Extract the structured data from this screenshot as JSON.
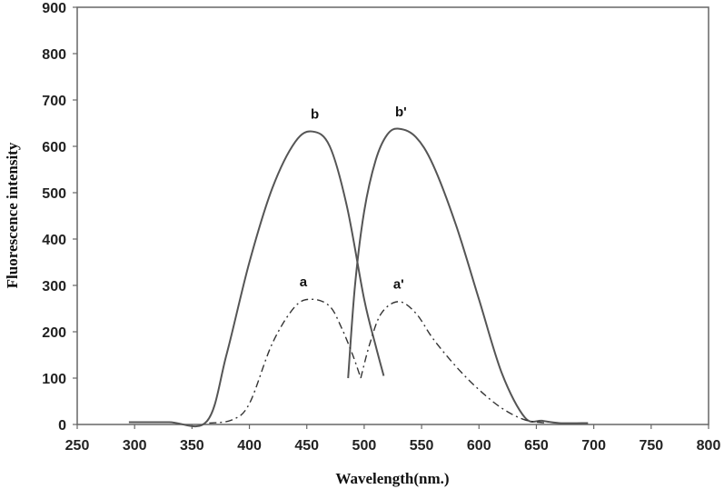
{
  "chart_data": {
    "type": "line",
    "title": "",
    "xlabel": "Wavelength(nm.)",
    "ylabel": "Fluorescence intensity",
    "xlim": [
      250,
      800
    ],
    "ylim": [
      0,
      900
    ],
    "xticks": [
      250,
      300,
      350,
      400,
      450,
      500,
      550,
      600,
      650,
      700,
      750,
      800
    ],
    "yticks": [
      0,
      100,
      200,
      300,
      400,
      500,
      600,
      700,
      800,
      900
    ],
    "grid": false,
    "legend": "none",
    "series": [
      {
        "name": "b",
        "style": "solid",
        "color": "#555555",
        "x": [
          295,
          330,
          363,
          380,
          400,
          420,
          440,
          455,
          470,
          485,
          500,
          510,
          517
        ],
        "y": [
          5,
          5,
          7,
          150,
          350,
          510,
          610,
          632,
          600,
          470,
          270,
          170,
          105
        ]
      },
      {
        "name": "b'",
        "style": "solid",
        "color": "#555555",
        "x": [
          486,
          492,
          500,
          510,
          520,
          530,
          545,
          560,
          580,
          600,
          620,
          640,
          655,
          670,
          695
        ],
        "y": [
          100,
          300,
          460,
          570,
          625,
          638,
          620,
          560,
          430,
          270,
          110,
          15,
          8,
          3,
          3
        ]
      },
      {
        "name": "a",
        "style": "dashed",
        "color": "#333333",
        "x": [
          365,
          385,
          400,
          420,
          440,
          455,
          470,
          480,
          490,
          497
        ],
        "y": [
          3,
          10,
          45,
          175,
          255,
          270,
          255,
          210,
          150,
          100
        ]
      },
      {
        "name": "a'",
        "style": "dashed",
        "color": "#333333",
        "x": [
          497,
          505,
          515,
          530,
          545,
          560,
          580,
          600,
          620,
          640,
          660
        ],
        "y": [
          100,
          175,
          240,
          265,
          240,
          185,
          125,
          75,
          35,
          10,
          3
        ]
      }
    ],
    "annotations": [
      {
        "text": "b",
        "x": 457,
        "y": 660
      },
      {
        "text": "b'",
        "x": 532,
        "y": 665
      },
      {
        "text": "a",
        "x": 447,
        "y": 298
      },
      {
        "text": "a'",
        "x": 530,
        "y": 293
      }
    ]
  }
}
